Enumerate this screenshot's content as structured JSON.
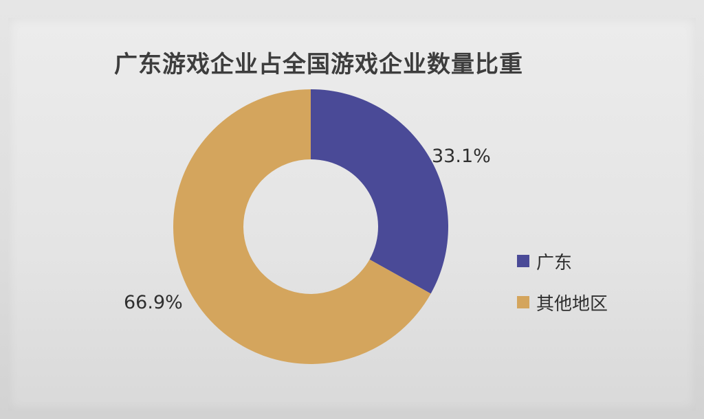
{
  "chart_data": {
    "type": "pie",
    "style": "donut",
    "title": "广东游戏企业占全国游戏企业数量比重",
    "categories": [
      "广东",
      "其他地区"
    ],
    "values": [
      33.1,
      66.9
    ],
    "labels": [
      "33.1%",
      "66.9%"
    ],
    "colors": [
      "#4a4a97",
      "#d4a55d"
    ],
    "legend_position": "right"
  }
}
